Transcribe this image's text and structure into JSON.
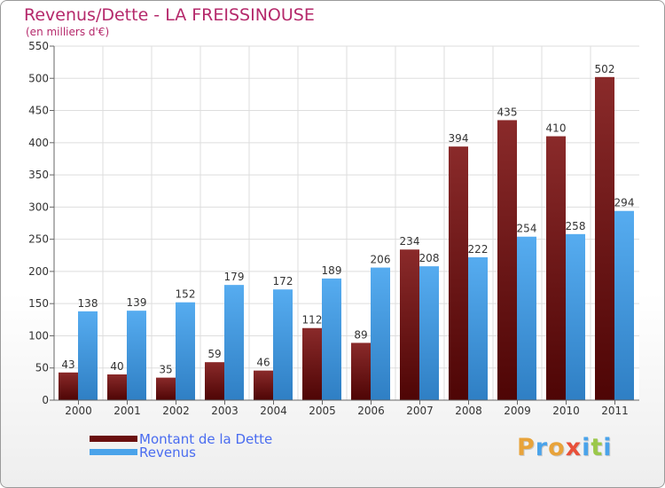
{
  "chart_data": {
    "type": "bar",
    "title": "Revenus/Dette - LA FREISSINOUSE",
    "subtitle": "(en milliers d'€)",
    "categories": [
      "2000",
      "2001",
      "2002",
      "2003",
      "2004",
      "2005",
      "2006",
      "2007",
      "2008",
      "2009",
      "2010",
      "2011"
    ],
    "series": [
      {
        "name": "Montant de la Dette",
        "color": "#6a0f0f",
        "values": [
          43,
          40,
          35,
          59,
          46,
          112,
          89,
          234,
          394,
          435,
          410,
          502
        ]
      },
      {
        "name": "Revenus",
        "color": "#4aa3ea",
        "values": [
          138,
          139,
          152,
          179,
          172,
          189,
          206,
          208,
          222,
          254,
          258,
          294
        ]
      }
    ],
    "ylim": [
      0,
      550
    ],
    "yticks": [
      0,
      50,
      100,
      150,
      200,
      250,
      300,
      350,
      400,
      450,
      500,
      550
    ],
    "grid": true,
    "legend_position": "bottom-left"
  },
  "logo": {
    "text": "Proxiti",
    "letters": [
      {
        "ch": "P",
        "color": "#e8a33a"
      },
      {
        "ch": "r",
        "color": "#4aa3ea"
      },
      {
        "ch": "o",
        "color": "#e8a33a"
      },
      {
        "ch": "x",
        "color": "#e8503a"
      },
      {
        "ch": "i",
        "color": "#4aa3ea"
      },
      {
        "ch": "t",
        "color": "#9bc84a"
      },
      {
        "ch": "i",
        "color": "#4aa3ea"
      }
    ]
  }
}
